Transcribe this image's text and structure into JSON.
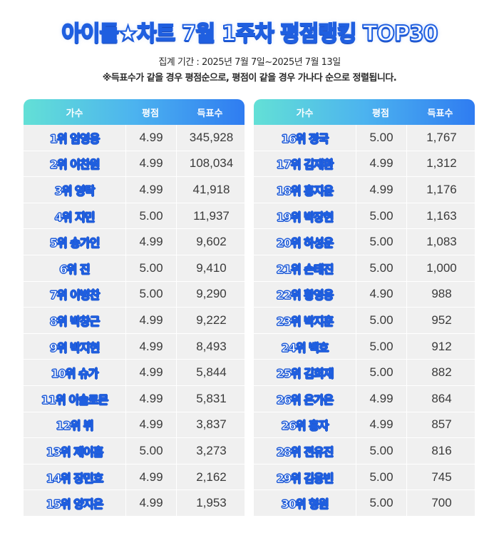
{
  "header": {
    "title_a": "아이돌",
    "title_star": "★",
    "title_b": "차트 7월 1주차 평점랭킹 TOP30",
    "period": "집계 기간 : 2025년 7월 7일~2025년 7월 13일",
    "note": "※득표수가 같을 경우 평점순으로, 평점이 같을 경우 가나다 순으로 정렬됩니다."
  },
  "columns": {
    "singer": "가수",
    "score": "평점",
    "votes": "득표수"
  },
  "left_rows": [
    {
      "name": "1위 임영웅",
      "score": "4.99",
      "votes": "345,928"
    },
    {
      "name": "2위 이찬원",
      "score": "4.99",
      "votes": "108,034"
    },
    {
      "name": "3위 영탁",
      "score": "4.99",
      "votes": "41,918"
    },
    {
      "name": "4위 지민",
      "score": "5.00",
      "votes": "11,937"
    },
    {
      "name": "5위 송가인",
      "score": "4.99",
      "votes": "9,602"
    },
    {
      "name": "6위 진",
      "score": "5.00",
      "votes": "9,410"
    },
    {
      "name": "7위 이병찬",
      "score": "5.00",
      "votes": "9,290"
    },
    {
      "name": "8위 박창근",
      "score": "4.99",
      "votes": "9,222"
    },
    {
      "name": "9위 박지현",
      "score": "4.99",
      "votes": "8,493"
    },
    {
      "name": "10위 슈가",
      "score": "4.99",
      "votes": "5,844"
    },
    {
      "name": "11위 이솔로몬",
      "score": "4.99",
      "votes": "5,831"
    },
    {
      "name": "12위 뷔",
      "score": "4.99",
      "votes": "3,837"
    },
    {
      "name": "13위 제이홉",
      "score": "5.00",
      "votes": "3,273"
    },
    {
      "name": "14위 장민호",
      "score": "4.99",
      "votes": "2,162"
    },
    {
      "name": "15위 양지은",
      "score": "4.99",
      "votes": "1,953"
    }
  ],
  "right_rows": [
    {
      "name": "16위 정국",
      "score": "5.00",
      "votes": "1,767"
    },
    {
      "name": "17위 김재환",
      "score": "4.99",
      "votes": "1,312"
    },
    {
      "name": "18위 홍지윤",
      "score": "4.99",
      "votes": "1,176"
    },
    {
      "name": "19위 박장현",
      "score": "5.00",
      "votes": "1,163"
    },
    {
      "name": "20위 하성운",
      "score": "5.00",
      "votes": "1,083"
    },
    {
      "name": "21위 손태진",
      "score": "5.00",
      "votes": "1,000"
    },
    {
      "name": "22위 황영웅",
      "score": "4.90",
      "votes": "988"
    },
    {
      "name": "23위 박지훈",
      "score": "5.00",
      "votes": "952"
    },
    {
      "name": "24위 백호",
      "score": "5.00",
      "votes": "912"
    },
    {
      "name": "25위 김희재",
      "score": "5.00",
      "votes": "882"
    },
    {
      "name": "26위 은가은",
      "score": "4.99",
      "votes": "864"
    },
    {
      "name": "26위 홍자",
      "score": "4.99",
      "votes": "857"
    },
    {
      "name": "28위 전유진",
      "score": "5.00",
      "votes": "816"
    },
    {
      "name": "29위 김용빈",
      "score": "5.00",
      "votes": "745"
    },
    {
      "name": "30위 형원",
      "score": "5.00",
      "votes": "700"
    }
  ]
}
